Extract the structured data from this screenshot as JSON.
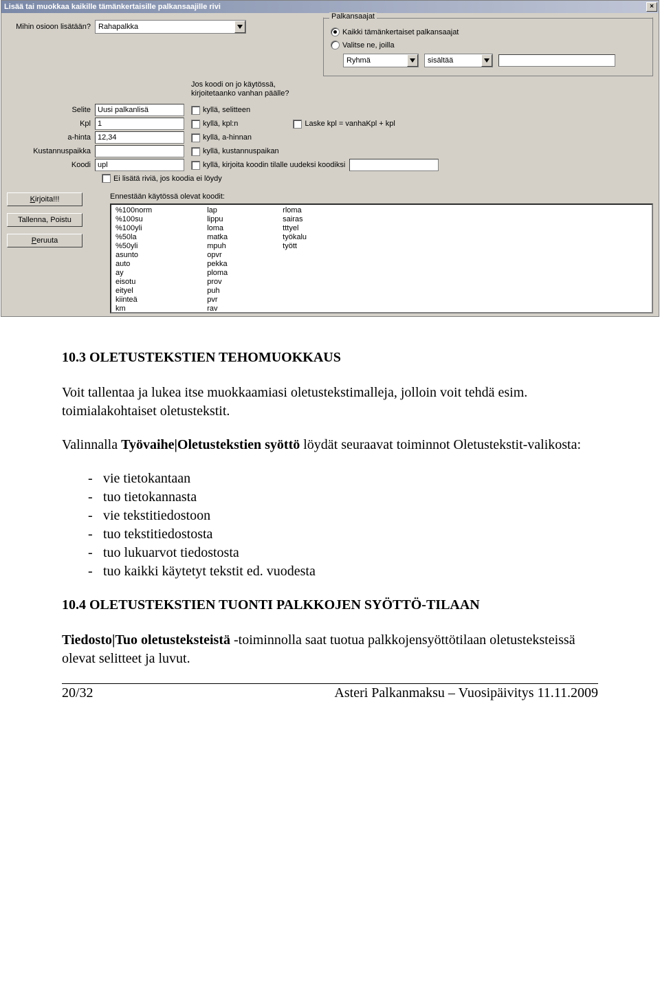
{
  "dialog": {
    "title": "Lisää tai muokkaa kaikille tämänkertaisille palkansaajille rivi",
    "section_label": "Mihin osioon lisätään?",
    "section_value": "Rahapalkka",
    "palkansaajat_legend": "Palkansaajat",
    "radio_all": "Kaikki tämänkertaiset palkansaajat",
    "radio_select": "Valitse ne, joilla",
    "ryhma": "Ryhmä",
    "sisaltaa": "sisältää",
    "note": "Jos koodi on jo käytössä, kirjoitetaanko vanhan päälle?",
    "fields": {
      "selite_label": "Selite",
      "selite_value": "Uusi palkanlisä",
      "kpl_label": "Kpl",
      "kpl_value": "1",
      "ahinta_label": "a-hinta",
      "ahinta_value": "12,34",
      "kust_label": "Kustannuspaikka",
      "kust_value": "",
      "koodi_label": "Koodi",
      "koodi_value": "upl"
    },
    "checks": {
      "selite": "kyllä, selitteen",
      "kpl": "kyllä, kpl:n",
      "laske": "Laske kpl = vanhaKpl + kpl",
      "ahinta": "kyllä, a-hinnan",
      "kust": "kyllä, kustannuspaikan",
      "koodi": "kyllä, kirjoita koodin tilalle uudeksi koodiksi",
      "eilisata": "Ei lisätä riviä, jos koodia ei löydy"
    },
    "codes_label": "Ennestään käytössä olevat koodit:",
    "codes_col1": [
      "%100norm",
      "%100su",
      "%100yli",
      "%50la",
      "%50yli",
      "asunto",
      "auto",
      "ay",
      "eisotu",
      "eityel",
      "kiinteä",
      "km"
    ],
    "codes_col2": [
      "lap",
      "lippu",
      "loma",
      "matka",
      "mpuh",
      "opvr",
      "pekka",
      "ploma",
      "prov",
      "puh",
      "pvr",
      "rav"
    ],
    "codes_col3": [
      "rloma",
      "sairas",
      "tttyel",
      "työkalu",
      "tyött"
    ],
    "buttons": {
      "kirjoita": "Kirjoita!!!",
      "tallenna": "Tallenna, Poistu",
      "peruuta": "Peruuta"
    }
  },
  "doc": {
    "h103": "10.3 OLETUSTEKSTIEN TEHOMUOKKAUS",
    "p1": "Voit tallentaa ja lukea itse muokkaamiasi oletustekstimalleja, jolloin voit tehdä esim. toimialakohtaiset oletustekstit.",
    "p2a": "Valinnalla ",
    "p2bold": "Työvaihe|Oletustekstien syöttö",
    "p2b": " löydät seuraavat toiminnot Oletustekstit-valikosta:",
    "list": [
      "vie tietokantaan",
      "tuo tietokannasta",
      "vie tekstitiedostoon",
      "tuo tekstitiedostosta",
      "tuo lukuarvot tiedostosta",
      "tuo kaikki käytetyt tekstit ed. vuodesta"
    ],
    "h104": "10.4 OLETUSTEKSTIEN TUONTI PALKKOJEN SYÖTTÖ-TILAAN",
    "p3a": "Tiedosto|Tuo oletusteksteistä",
    "p3b": " -toiminnolla saat tuotua palkkojensyöttötilaan oletusteksteissä olevat selitteet ja luvut.",
    "footer_left": "20/32",
    "footer_right": "Asteri Palkanmaksu – Vuosipäivitys 11.11.2009"
  }
}
